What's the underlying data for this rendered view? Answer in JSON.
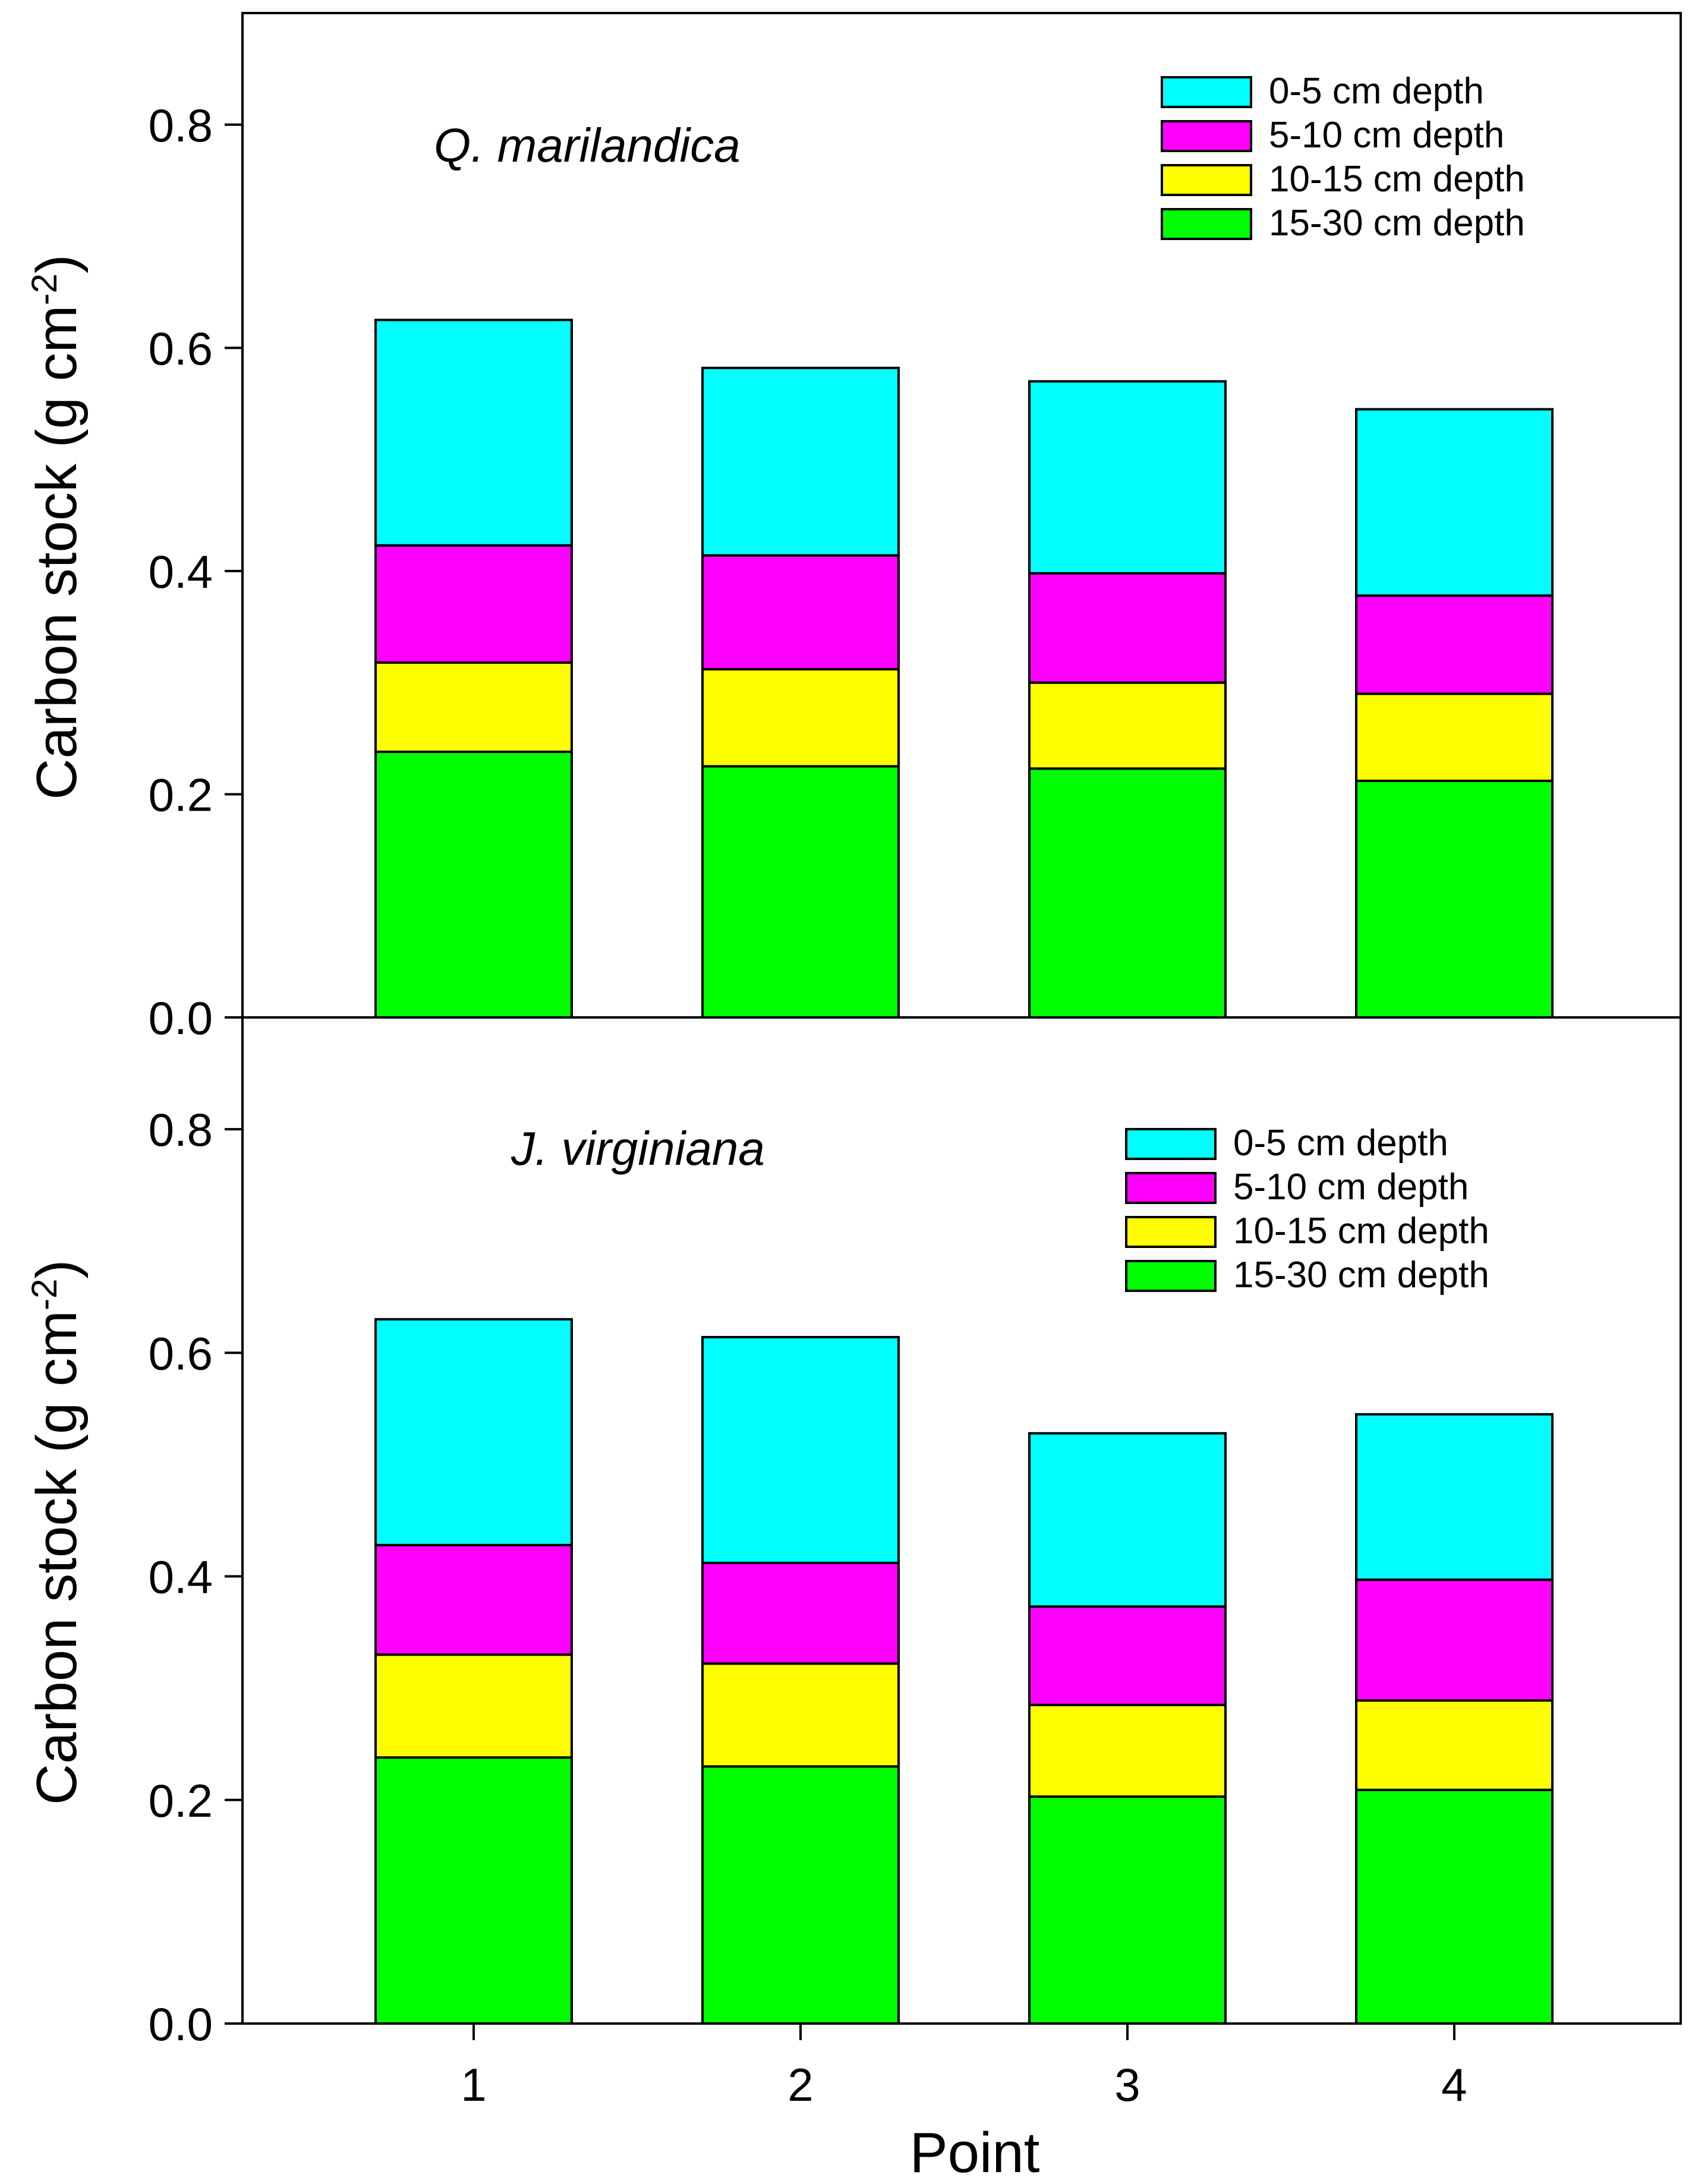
{
  "chart_data": [
    {
      "type": "bar",
      "stacked": true,
      "title": "Q. marilandica",
      "ylabel": "Carbon stock (g cm",
      "ylabel_superscript": "-2",
      "ylabel_close": ")",
      "xlabel": "Point",
      "categories": [
        "1",
        "2",
        "3",
        "4"
      ],
      "ylim": [
        0,
        0.9
      ],
      "yticks": [
        "0.0",
        "0.2",
        "0.4",
        "0.6",
        "0.8"
      ],
      "ytick_values": [
        0,
        0.2,
        0.4,
        0.6,
        0.8
      ],
      "legend_position": "top-right",
      "series": [
        {
          "name": "15-30 cm depth",
          "color": "#00ff00",
          "values": [
            0.238,
            0.225,
            0.223,
            0.212
          ]
        },
        {
          "name": "10-15 cm depth",
          "color": "#ffff00",
          "values": [
            0.08,
            0.087,
            0.077,
            0.078
          ]
        },
        {
          "name": "5-10 cm depth",
          "color": "#ff00ff",
          "values": [
            0.105,
            0.102,
            0.098,
            0.088
          ]
        },
        {
          "name": "0-5 cm depth",
          "color": "#00ffff",
          "values": [
            0.202,
            0.168,
            0.172,
            0.167
          ]
        }
      ],
      "legend_order": [
        "0-5 cm depth",
        "5-10 cm depth",
        "10-15 cm depth",
        "15-30 cm depth"
      ]
    },
    {
      "type": "bar",
      "stacked": true,
      "title": "J. virginiana",
      "ylabel": "Carbon stock (g cm",
      "ylabel_superscript": "-2",
      "ylabel_close": ")",
      "xlabel": "Point",
      "categories": [
        "1",
        "2",
        "3",
        "4"
      ],
      "ylim": [
        0,
        0.9
      ],
      "yticks": [
        "0.0",
        "0.2",
        "0.4",
        "0.6",
        "0.8"
      ],
      "ytick_values": [
        0,
        0.2,
        0.4,
        0.6,
        0.8
      ],
      "legend_position": "top-right",
      "series": [
        {
          "name": "15-30 cm depth",
          "color": "#00ff00",
          "values": [
            0.238,
            0.23,
            0.203,
            0.209
          ]
        },
        {
          "name": "10-15 cm depth",
          "color": "#ffff00",
          "values": [
            0.092,
            0.092,
            0.082,
            0.08
          ]
        },
        {
          "name": "5-10 cm depth",
          "color": "#ff00ff",
          "values": [
            0.098,
            0.09,
            0.088,
            0.108
          ]
        },
        {
          "name": "0-5 cm depth",
          "color": "#00ffff",
          "values": [
            0.202,
            0.202,
            0.155,
            0.148
          ]
        }
      ],
      "legend_order": [
        "0-5 cm depth",
        "5-10 cm depth",
        "10-15 cm depth",
        "15-30 cm depth"
      ]
    }
  ]
}
